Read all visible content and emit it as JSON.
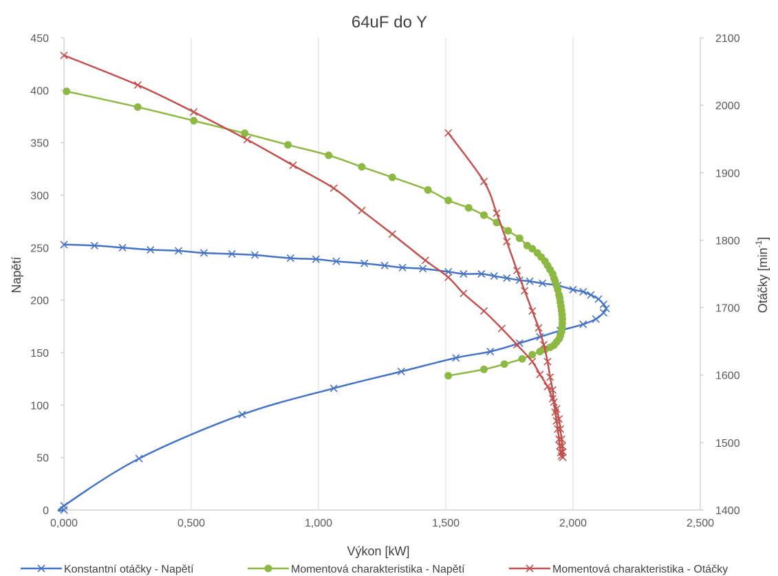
{
  "chart_data": {
    "type": "line",
    "title": "64uF do Y",
    "xlabel": "Výkon [kW]",
    "ylabel": "Napětí",
    "y2label_main": "Otáčky [min",
    "y2label_sup": "-1",
    "y2label_end": "]",
    "xlim": [
      0,
      2.5
    ],
    "ylim": [
      0,
      450
    ],
    "y2lim": [
      1400,
      2100
    ],
    "grid": "x-major",
    "legend_position": "bottom",
    "x_ticks": [
      "0,000",
      "0,500",
      "1,000",
      "1,500",
      "2,000",
      "2,500"
    ],
    "y_ticks": [
      "0",
      "50",
      "100",
      "150",
      "200",
      "250",
      "300",
      "350",
      "400",
      "450"
    ],
    "y2_ticks": [
      "1400",
      "1500",
      "1600",
      "1700",
      "1800",
      "1900",
      "2000",
      "2100"
    ],
    "series": [
      {
        "name": "Konstantní otáčky - Napětí",
        "axis": "left",
        "color": "#4472C4",
        "marker": "x",
        "points": [
          [
            0.0,
            0
          ],
          [
            0.0,
            4
          ],
          [
            0.295,
            49
          ],
          [
            0.7,
            91
          ],
          [
            1.06,
            116
          ],
          [
            1.325,
            132
          ],
          [
            1.54,
            145
          ],
          [
            1.675,
            151
          ],
          [
            1.79,
            159
          ],
          [
            1.87,
            165
          ],
          [
            1.95,
            171
          ],
          [
            2.04,
            177
          ],
          [
            2.09,
            182
          ],
          [
            2.12,
            188
          ],
          [
            2.13,
            192
          ],
          [
            2.12,
            196
          ],
          [
            2.1,
            201
          ],
          [
            2.07,
            205
          ],
          [
            2.04,
            208
          ],
          [
            2.0,
            210
          ],
          [
            1.94,
            214
          ],
          [
            1.88,
            216
          ],
          [
            1.83,
            218
          ],
          [
            1.79,
            219
          ],
          [
            1.74,
            221
          ],
          [
            1.69,
            223
          ],
          [
            1.64,
            225
          ],
          [
            1.57,
            225
          ],
          [
            1.51,
            227
          ],
          [
            1.41,
            230
          ],
          [
            1.33,
            231
          ],
          [
            1.26,
            233
          ],
          [
            1.18,
            235
          ],
          [
            1.07,
            237
          ],
          [
            0.99,
            239
          ],
          [
            0.89,
            240
          ],
          [
            0.75,
            243
          ],
          [
            0.66,
            244
          ],
          [
            0.55,
            245
          ],
          [
            0.45,
            247
          ],
          [
            0.34,
            248
          ],
          [
            0.23,
            250
          ],
          [
            0.12,
            252
          ],
          [
            0.0,
            253
          ]
        ]
      },
      {
        "name": "Momentová charakteristika - Napětí",
        "axis": "left",
        "color": "#8DB843",
        "marker": "circle",
        "points": [
          [
            1.51,
            128
          ],
          [
            1.65,
            134
          ],
          [
            1.73,
            139
          ],
          [
            1.8,
            144
          ],
          [
            1.84,
            148
          ],
          [
            1.87,
            151
          ],
          [
            1.89,
            153
          ],
          [
            1.91,
            155
          ],
          [
            1.925,
            157
          ],
          [
            1.935,
            160
          ],
          [
            1.945,
            163
          ],
          [
            1.95,
            166
          ],
          [
            1.955,
            170
          ],
          [
            1.957,
            174
          ],
          [
            1.958,
            178
          ],
          [
            1.958,
            182
          ],
          [
            1.957,
            186
          ],
          [
            1.955,
            190
          ],
          [
            1.953,
            194
          ],
          [
            1.95,
            198
          ],
          [
            1.948,
            202
          ],
          [
            1.945,
            205
          ],
          [
            1.94,
            210
          ],
          [
            1.935,
            214
          ],
          [
            1.93,
            218
          ],
          [
            1.925,
            221
          ],
          [
            1.92,
            225
          ],
          [
            1.91,
            229
          ],
          [
            1.9,
            233
          ],
          [
            1.89,
            237
          ],
          [
            1.875,
            241
          ],
          [
            1.86,
            245
          ],
          [
            1.84,
            249
          ],
          [
            1.82,
            252
          ],
          [
            1.79,
            259
          ],
          [
            1.745,
            266
          ],
          [
            1.7,
            274
          ],
          [
            1.65,
            281
          ],
          [
            1.59,
            288
          ],
          [
            1.51,
            295
          ],
          [
            1.43,
            305
          ],
          [
            1.29,
            317
          ],
          [
            1.17,
            327
          ],
          [
            1.04,
            338
          ],
          [
            0.88,
            348
          ],
          [
            0.71,
            359
          ],
          [
            0.51,
            371
          ],
          [
            0.29,
            384
          ],
          [
            0.01,
            399
          ]
        ]
      },
      {
        "name": "Momentová charakteristika - Otáčky",
        "axis": "right",
        "color": "#C0504D",
        "marker": "x",
        "points": [
          [
            0.0,
            2074
          ],
          [
            0.29,
            2030
          ],
          [
            0.51,
            1990
          ],
          [
            0.72,
            1949
          ],
          [
            0.9,
            1911
          ],
          [
            1.06,
            1877
          ],
          [
            1.17,
            1844
          ],
          [
            1.29,
            1809
          ],
          [
            1.42,
            1770
          ],
          [
            1.51,
            1745
          ],
          [
            1.57,
            1721
          ],
          [
            1.65,
            1695
          ],
          [
            1.72,
            1669
          ],
          [
            1.78,
            1645
          ],
          [
            1.84,
            1620
          ],
          [
            1.87,
            1601
          ],
          [
            1.9,
            1583
          ],
          [
            1.92,
            1565
          ],
          [
            1.935,
            1550
          ],
          [
            1.945,
            1535
          ],
          [
            1.95,
            1520
          ],
          [
            1.955,
            1505
          ],
          [
            1.958,
            1495
          ],
          [
            1.96,
            1486
          ],
          [
            1.96,
            1478
          ],
          [
            1.955,
            1480
          ],
          [
            1.952,
            1485
          ],
          [
            1.948,
            1495
          ],
          [
            1.945,
            1505
          ],
          [
            1.94,
            1520
          ],
          [
            1.935,
            1532
          ],
          [
            1.93,
            1545
          ],
          [
            1.925,
            1560
          ],
          [
            1.92,
            1578
          ],
          [
            1.91,
            1597
          ],
          [
            1.9,
            1620
          ],
          [
            1.885,
            1645
          ],
          [
            1.865,
            1670
          ],
          [
            1.84,
            1695
          ],
          [
            1.81,
            1725
          ],
          [
            1.78,
            1755
          ],
          [
            1.74,
            1798
          ],
          [
            1.7,
            1840
          ],
          [
            1.65,
            1887
          ],
          [
            1.51,
            1959
          ]
        ]
      }
    ]
  }
}
